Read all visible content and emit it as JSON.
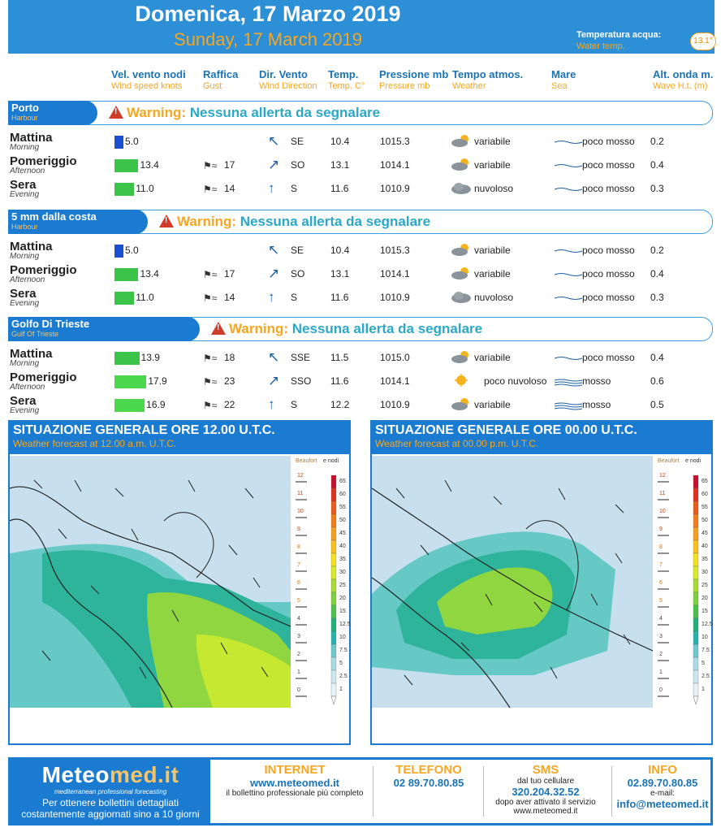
{
  "header": {
    "title_it": "Domenica, 17 Marzo 2019",
    "title_en": "Sunday, 17 March 2019",
    "water_label_it": "Temperatura acqua:",
    "water_label_en": "Water temp.",
    "water_value": "13.1°"
  },
  "columns": [
    {
      "it": "Vel. vento nodi",
      "en": "Wind speed knots"
    },
    {
      "it": "Raffica",
      "en": "Gust"
    },
    {
      "it": "Dir. Vento",
      "en": "Wind Direction"
    },
    {
      "it": "Temp.",
      "en": "Temp. C°"
    },
    {
      "it": "Pressione mb",
      "en": "Pressure mb"
    },
    {
      "it": "Tempo atmos.",
      "en": "Weather"
    },
    {
      "it": "Mare",
      "en": "Sea"
    },
    {
      "it": "Alt. onda m.",
      "en": "Wave H.t. (m)"
    }
  ],
  "warning_word": "Warning:",
  "warning_text": "Nessuna allerta da segnalare",
  "sections": [
    {
      "name": "Porto",
      "en": "Harbour",
      "rows": [
        {
          "p": "Mattina",
          "pe": "Morning",
          "wind": "5.0",
          "windv": 5.0,
          "gust": "",
          "dir": "SE",
          "temp": "10.4",
          "press": "1015.3",
          "weather": "variabile",
          "sea": "poco mosso",
          "wave": "0.2"
        },
        {
          "p": "Pomeriggio",
          "pe": "Afternoon",
          "wind": "13.4",
          "windv": 13.4,
          "gust": "17",
          "dir": "SO",
          "temp": "13.1",
          "press": "1014.1",
          "weather": "variabile",
          "sea": "poco mosso",
          "wave": "0.4"
        },
        {
          "p": "Sera",
          "pe": "Evening",
          "wind": "11.0",
          "windv": 11.0,
          "gust": "14",
          "dir": "S",
          "temp": "11.6",
          "press": "1010.9",
          "weather": "nuvoloso",
          "sea": "poco mosso",
          "wave": "0.3"
        }
      ]
    },
    {
      "name": "5 mm dalla costa",
      "en": "Harbour",
      "rows": [
        {
          "p": "Mattina",
          "pe": "Morning",
          "wind": "5.0",
          "windv": 5.0,
          "gust": "",
          "dir": "SE",
          "temp": "10.4",
          "press": "1015.3",
          "weather": "variabile",
          "sea": "poco mosso",
          "wave": "0.2"
        },
        {
          "p": "Pomeriggio",
          "pe": "Afternoon",
          "wind": "13.4",
          "windv": 13.4,
          "gust": "17",
          "dir": "SO",
          "temp": "13.1",
          "press": "1014.1",
          "weather": "variabile",
          "sea": "poco mosso",
          "wave": "0.4"
        },
        {
          "p": "Sera",
          "pe": "Evening",
          "wind": "11.0",
          "windv": 11.0,
          "gust": "14",
          "dir": "S",
          "temp": "11.6",
          "press": "1010.9",
          "weather": "nuvoloso",
          "sea": "poco mosso",
          "wave": "0.3"
        }
      ]
    },
    {
      "name": "Golfo Di Trieste",
      "en": "Gulf Of Trieste",
      "rows": [
        {
          "p": "Mattina",
          "pe": "Morning",
          "wind": "13.9",
          "windv": 13.9,
          "gust": "18",
          "dir": "SSE",
          "temp": "11.5",
          "press": "1015.0",
          "weather": "variabile",
          "sea": "poco mosso",
          "wave": "0.4"
        },
        {
          "p": "Pomeriggio",
          "pe": "Afternoon",
          "wind": "17.9",
          "windv": 17.9,
          "gust": "23",
          "dir": "SSO",
          "temp": "11.6",
          "press": "1014.1",
          "weather": "poco nuvoloso",
          "sea": "mosso",
          "wave": "0.6"
        },
        {
          "p": "Sera",
          "pe": "Evening",
          "wind": "16.9",
          "windv": 16.9,
          "gust": "22",
          "dir": "S",
          "temp": "12.2",
          "press": "1010.9",
          "weather": "variabile",
          "sea": "mosso",
          "wave": "0.5"
        }
      ]
    }
  ],
  "maps": [
    {
      "title": "SITUAZIONE GENERALE ORE 12.00 U.T.C.",
      "subtitle": "Weather forecast at 12.00 a.m. U.T.C."
    },
    {
      "title": "SITUAZIONE GENERALE ORE 00.00 U.T.C.",
      "subtitle": "Weather forecast at 00.00 p.m. U.T.C."
    }
  ],
  "legend": {
    "header": "Beaufort",
    "header2": "e nodi",
    "beaufort": [
      "12",
      "11",
      "10",
      "9",
      "8",
      "7",
      "6",
      "5",
      "4",
      "3",
      "2",
      "1",
      "0"
    ],
    "knots": [
      "65",
      "60",
      "55",
      "50",
      "45",
      "40",
      "35",
      "30",
      "25",
      "20",
      "15",
      "12.5",
      "10",
      "7.5",
      "5",
      "2.5",
      "1"
    ],
    "colors": [
      "#c8102e",
      "#e0301e",
      "#ea5a1c",
      "#f07d1a",
      "#f5a01d",
      "#f7c01f",
      "#f3e11f",
      "#d6ea28",
      "#a8dc30",
      "#7fd03a",
      "#4cc04a",
      "#22b07a",
      "#26b3ae",
      "#6ec9cf",
      "#a8dbe5",
      "#cde7f1",
      "#e6f2f8"
    ]
  },
  "footer": {
    "logo_a": "Meteo",
    "logo_b": "med.it",
    "tagline": "mediterranean professional forecasting",
    "desc": "Per ottenere bollettini dettagliati costantemente aggiornati sino a 10 giorni",
    "internet_h": "INTERNET",
    "internet_b": "www.meteomed.it",
    "internet_n": "il bollettino professionale più completo",
    "tel_h": "TELEFONO",
    "tel_b": "02 89.70.80.85",
    "sms_h": "SMS",
    "sms_n1": "dal tuo cellulare",
    "sms_b": "320.204.32.52",
    "sms_n2": "dopo aver attivato il servizio",
    "sms_n3": "www.meteomed.it",
    "info_h": "INFO",
    "info_b": "02.89.70.80.85",
    "info_n": "e-mail:",
    "info_b2": "info@meteomed.it"
  },
  "colors": {
    "accent": "#1a7bd0",
    "orange": "#f5a623",
    "wind_blue": "#1a4fd0",
    "wind_green": "#3cc44a",
    "wind_green_strong": "#4bd84f"
  }
}
